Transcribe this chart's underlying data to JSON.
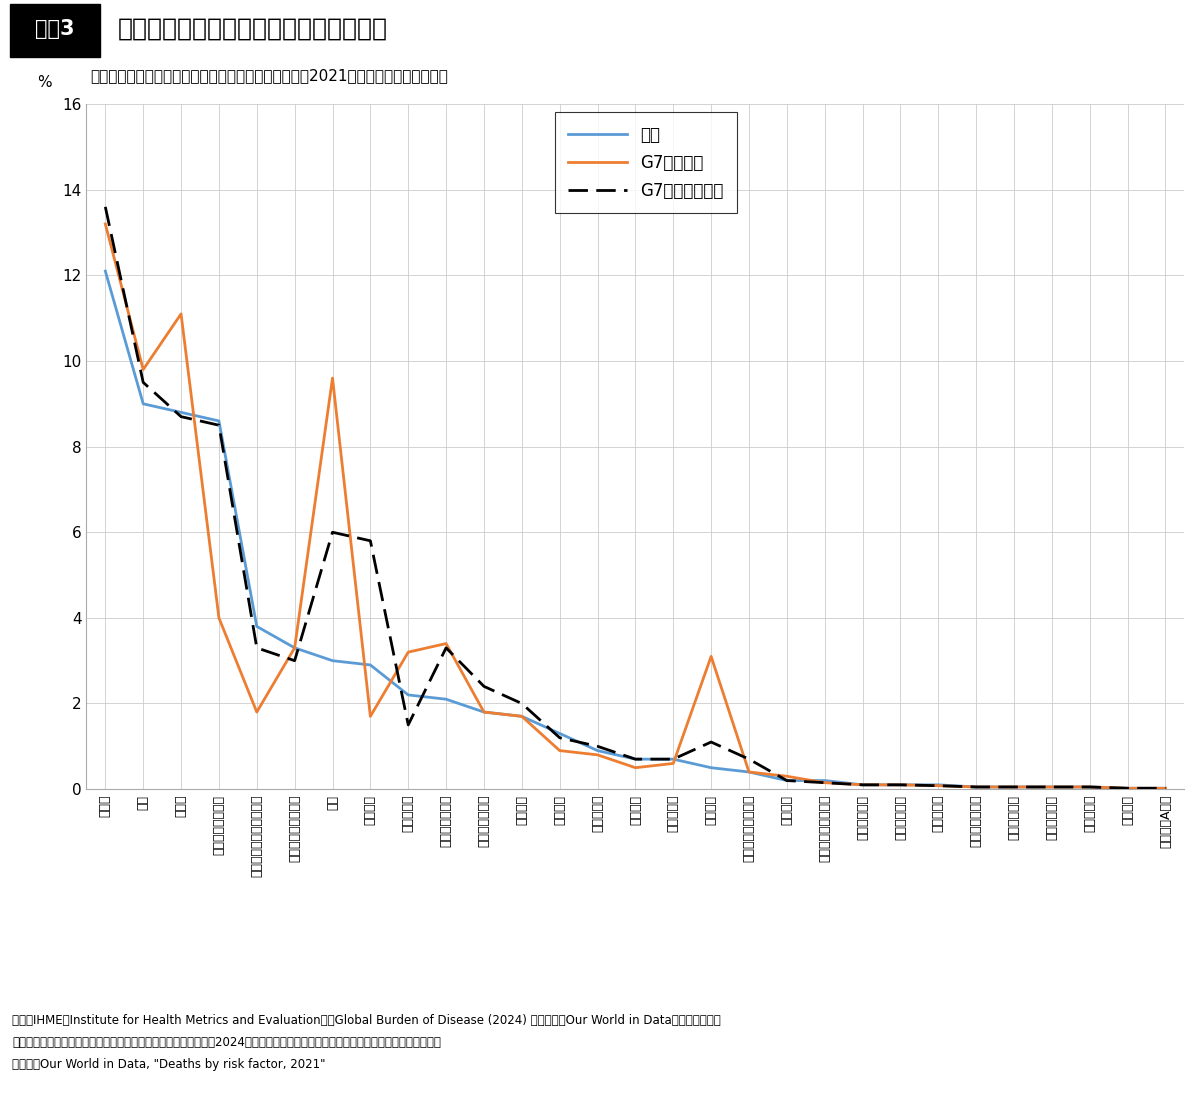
{
  "title_box": "図表3",
  "title_main": "高血糖、肥満、薬物のリスクの高い米国",
  "subtitle": "各リスク要因による年間死亡者数の対死亡総数割合（2021年、要因毎に重複あり）",
  "ylabel": "%",
  "ylim": [
    0,
    16
  ],
  "yticks": [
    0,
    2,
    4,
    6,
    8,
    10,
    12,
    14,
    16
  ],
  "categories": [
    "高血圧",
    "喫煙",
    "高血糖",
    "高コレステロール",
    "大気汚染（屋外・屋内）",
    "屋外粒子状物質汚染",
    "肥満",
    "塩分過多",
    "アルコール",
    "フルーツ食不足",
    "全粒穀類食不足",
    "運動不足",
    "受動喫煙",
    "種実食不足",
    "低骨密度",
    "野菜食不足",
    "薬物乱用",
    "安全でないセックス",
    "幼児衰弱",
    "安全でない施設不足",
    "手洗いない水",
    "安全でない水",
    "低出生体重",
    "安全でない下水",
    "屋内空気汚染",
    "幼児発育不良",
    "非母乳育児",
    "鉄分不足",
    "ビタミンA不足"
  ],
  "japan": [
    12.1,
    9.0,
    8.8,
    8.6,
    3.8,
    3.3,
    3.0,
    2.9,
    2.2,
    2.1,
    1.8,
    1.7,
    1.3,
    0.9,
    0.7,
    0.7,
    0.5,
    0.4,
    0.2,
    0.2,
    0.1,
    0.1,
    0.1,
    0.05,
    0.05,
    0.05,
    0.05,
    0.02,
    0.02
  ],
  "g7_us": [
    13.2,
    9.8,
    11.1,
    4.0,
    1.8,
    3.3,
    9.6,
    1.7,
    3.2,
    3.4,
    1.8,
    1.7,
    0.9,
    0.8,
    0.5,
    0.6,
    3.1,
    0.4,
    0.3,
    0.15,
    0.1,
    0.1,
    0.08,
    0.05,
    0.05,
    0.05,
    0.05,
    0.02,
    0.02
  ],
  "g7_ex_us": [
    13.6,
    9.5,
    8.7,
    8.5,
    3.3,
    3.0,
    6.0,
    5.8,
    1.5,
    3.3,
    2.4,
    2.0,
    1.2,
    1.0,
    0.7,
    0.7,
    1.1,
    0.7,
    0.2,
    0.15,
    0.1,
    0.1,
    0.08,
    0.05,
    0.05,
    0.05,
    0.05,
    0.02,
    0.02
  ],
  "japan_color": "#5B9BD5",
  "g7_us_color": "#ED7D31",
  "g7_ex_us_color": "#000000",
  "legend_labels": [
    "日本",
    "G7（米国）",
    "G7（米国以外）"
  ],
  "footnote1": "（注）IHME（Institute for Health Metrics and Evaluation），Global Burden of Disease (2024) に基づき、Our World in Dataが多少の加工を",
  "footnote2": "ほどこしたデータ。死亡リスク割合は本図録で計算（死亡総数は2024年改訂国連推計人口による）。リスクの並びは日本の高い順。",
  "footnote3": "（資料）Our World in Data, \"Deaths by risk factor, 2021\""
}
